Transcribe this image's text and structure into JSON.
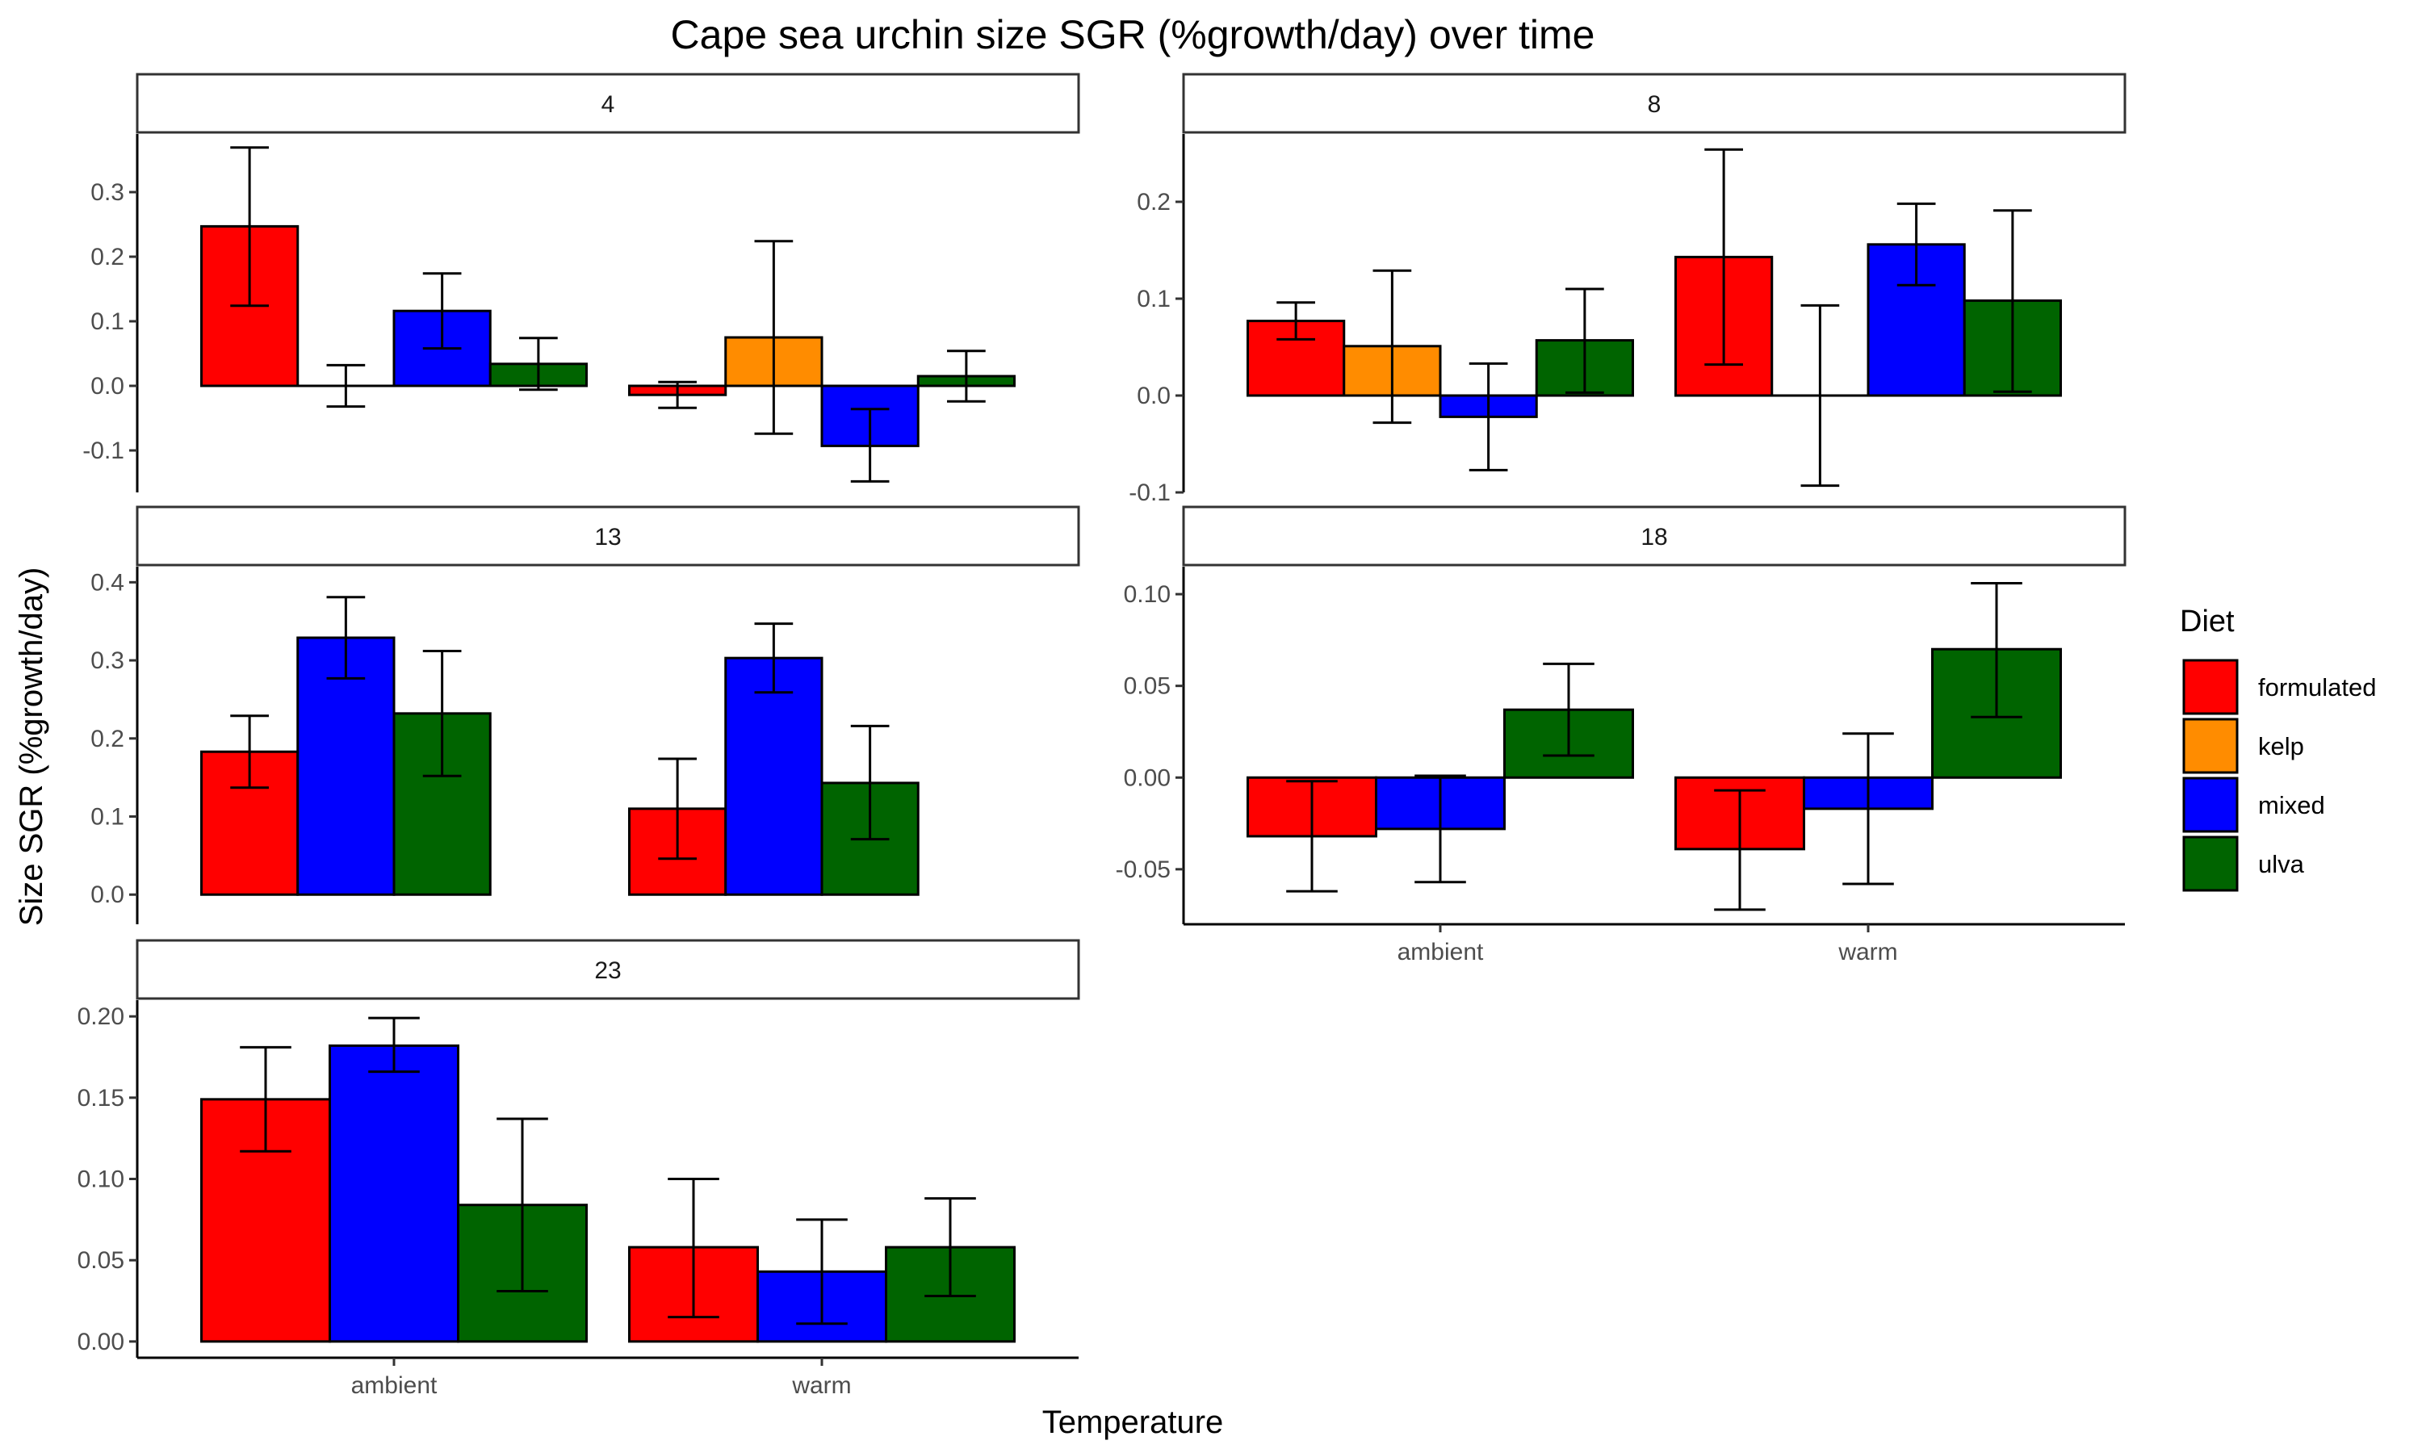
{
  "chart_data": {
    "type": "bar",
    "title": "Cape sea urchin size SGR (%growth/day) over time",
    "xlabel": "Temperature",
    "ylabel": "Size SGR (%growth/day)",
    "categories": [
      "ambient",
      "warm"
    ],
    "legend": {
      "title": "Diet",
      "placement": "right",
      "entries": [
        {
          "name": "formulated",
          "color": "#ff0000"
        },
        {
          "name": "kelp",
          "color": "#ff8c00"
        },
        {
          "name": "mixed",
          "color": "#0000ff"
        },
        {
          "name": "ulva",
          "color": "#006400"
        }
      ]
    },
    "grid": false,
    "panels": [
      {
        "label": "4",
        "ylim": [
          -0.165,
          0.39
        ],
        "yticks": [
          -0.1,
          0.0,
          0.1,
          0.2,
          0.3
        ],
        "ytick_labels": [
          "-0.1",
          "0.0",
          "0.1",
          "0.2",
          "0.3"
        ],
        "slots": 4,
        "groups": [
          {
            "category": "ambient",
            "bars": [
              {
                "diet": "formulated",
                "value": 0.247,
                "err_low": 0.124,
                "err_high": 0.369
              },
              {
                "diet": "kelp",
                "value": 0.0,
                "err_low": -0.032,
                "err_high": 0.032
              },
              {
                "diet": "mixed",
                "value": 0.116,
                "err_low": 0.058,
                "err_high": 0.174
              },
              {
                "diet": "ulva",
                "value": 0.034,
                "err_low": -0.006,
                "err_high": 0.074
              }
            ]
          },
          {
            "category": "warm",
            "bars": [
              {
                "diet": "formulated",
                "value": -0.014,
                "err_low": -0.034,
                "err_high": 0.006
              },
              {
                "diet": "kelp",
                "value": 0.075,
                "err_low": -0.074,
                "err_high": 0.224
              },
              {
                "diet": "mixed",
                "value": -0.093,
                "err_low": -0.148,
                "err_high": -0.036
              },
              {
                "diet": "ulva",
                "value": 0.015,
                "err_low": -0.024,
                "err_high": 0.054
              }
            ]
          }
        ]
      },
      {
        "label": "8",
        "ylim": [
          -0.1,
          0.27
        ],
        "yticks": [
          -0.1,
          0.0,
          0.1,
          0.2
        ],
        "ytick_labels": [
          "-0.1",
          "0.0",
          "0.1",
          "0.2"
        ],
        "slots": 4,
        "groups": [
          {
            "category": "ambient",
            "bars": [
              {
                "diet": "formulated",
                "value": 0.077,
                "err_low": 0.058,
                "err_high": 0.096
              },
              {
                "diet": "kelp",
                "value": 0.051,
                "err_low": -0.028,
                "err_high": 0.129
              },
              {
                "diet": "mixed",
                "value": -0.022,
                "err_low": -0.077,
                "err_high": 0.033
              },
              {
                "diet": "ulva",
                "value": 0.057,
                "err_low": 0.003,
                "err_high": 0.11
              }
            ]
          },
          {
            "category": "warm",
            "bars": [
              {
                "diet": "formulated",
                "value": 0.143,
                "err_low": 0.032,
                "err_high": 0.254
              },
              {
                "diet": "kelp",
                "value": 0.0,
                "err_low": -0.093,
                "err_high": 0.093
              },
              {
                "diet": "mixed",
                "value": 0.156,
                "err_low": 0.114,
                "err_high": 0.198
              },
              {
                "diet": "ulva",
                "value": 0.098,
                "err_low": 0.004,
                "err_high": 0.191
              }
            ]
          }
        ]
      },
      {
        "label": "13",
        "ylim": [
          -0.038,
          0.42
        ],
        "yticks": [
          0.0,
          0.1,
          0.2,
          0.3,
          0.4
        ],
        "ytick_labels": [
          "0.0",
          "0.1",
          "0.2",
          "0.3",
          "0.4"
        ],
        "slots": 4,
        "groups": [
          {
            "category": "ambient",
            "bars": [
              {
                "diet": "formulated",
                "value": 0.183,
                "err_low": 0.137,
                "err_high": 0.229
              },
              {
                "diet": "mixed",
                "value": 0.329,
                "err_low": 0.277,
                "err_high": 0.381
              },
              {
                "diet": "ulva",
                "value": 0.232,
                "err_low": 0.152,
                "err_high": 0.312
              }
            ]
          },
          {
            "category": "warm",
            "bars": [
              {
                "diet": "formulated",
                "value": 0.11,
                "err_low": 0.046,
                "err_high": 0.174
              },
              {
                "diet": "mixed",
                "value": 0.303,
                "err_low": 0.259,
                "err_high": 0.347
              },
              {
                "diet": "ulva",
                "value": 0.143,
                "err_low": 0.071,
                "err_high": 0.216
              }
            ]
          }
        ]
      },
      {
        "label": "18",
        "ylim": [
          -0.08,
          0.115
        ],
        "yticks": [
          -0.05,
          0.0,
          0.05,
          0.1
        ],
        "ytick_labels": [
          "-0.05",
          "0.00",
          "0.05",
          "0.10"
        ],
        "slots": 3,
        "groups": [
          {
            "category": "ambient",
            "bars": [
              {
                "diet": "formulated",
                "value": -0.032,
                "err_low": -0.062,
                "err_high": -0.002
              },
              {
                "diet": "mixed",
                "value": -0.028,
                "err_low": -0.057,
                "err_high": 0.001
              },
              {
                "diet": "ulva",
                "value": 0.037,
                "err_low": 0.012,
                "err_high": 0.062
              }
            ]
          },
          {
            "category": "warm",
            "bars": [
              {
                "diet": "formulated",
                "value": -0.039,
                "err_low": -0.072,
                "err_high": -0.007
              },
              {
                "diet": "mixed",
                "value": -0.017,
                "err_low": -0.058,
                "err_high": 0.024
              },
              {
                "diet": "ulva",
                "value": 0.07,
                "err_low": 0.033,
                "err_high": 0.106
              }
            ]
          }
        ]
      },
      {
        "label": "23",
        "ylim": [
          -0.01,
          0.21
        ],
        "yticks": [
          0.0,
          0.05,
          0.1,
          0.15,
          0.2
        ],
        "ytick_labels": [
          "0.00",
          "0.05",
          "0.10",
          "0.15",
          "0.20"
        ],
        "slots": 3,
        "groups": [
          {
            "category": "ambient",
            "bars": [
              {
                "diet": "formulated",
                "value": 0.149,
                "err_low": 0.117,
                "err_high": 0.181
              },
              {
                "diet": "mixed",
                "value": 0.182,
                "err_low": 0.166,
                "err_high": 0.199
              },
              {
                "diet": "ulva",
                "value": 0.084,
                "err_low": 0.031,
                "err_high": 0.137
              }
            ]
          },
          {
            "category": "warm",
            "bars": [
              {
                "diet": "formulated",
                "value": 0.058,
                "err_low": 0.015,
                "err_high": 0.1
              },
              {
                "diet": "mixed",
                "value": 0.043,
                "err_low": 0.011,
                "err_high": 0.075
              },
              {
                "diet": "ulva",
                "value": 0.058,
                "err_low": 0.028,
                "err_high": 0.088
              }
            ]
          }
        ]
      }
    ]
  }
}
